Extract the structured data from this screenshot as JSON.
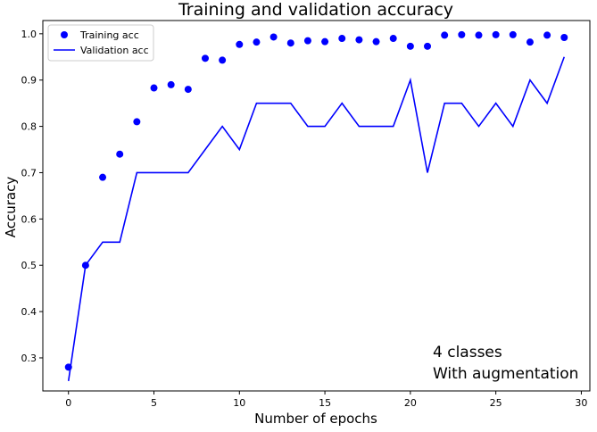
{
  "chart_data": {
    "type": "line",
    "title": "Training and validation accuracy",
    "xlabel": "Number of epochs",
    "ylabel": "Accuracy",
    "xlim": [
      -1.5,
      30.5
    ],
    "ylim": [
      0.2286,
      1.0286
    ],
    "xticks": [
      0,
      5,
      10,
      15,
      20,
      25,
      30
    ],
    "yticks": [
      0.3,
      0.4,
      0.5,
      0.6,
      0.7,
      0.8,
      0.9,
      1.0
    ],
    "grid": false,
    "legend_position": "top-left",
    "x": [
      0,
      1,
      2,
      3,
      4,
      5,
      6,
      7,
      8,
      9,
      10,
      11,
      12,
      13,
      14,
      15,
      16,
      17,
      18,
      19,
      20,
      21,
      22,
      23,
      24,
      25,
      26,
      27,
      28,
      29
    ],
    "series": [
      {
        "name": "Training acc",
        "style": "dots",
        "color": "#0000ff",
        "values": [
          0.28,
          0.5,
          0.69,
          0.74,
          0.81,
          0.883,
          0.89,
          0.88,
          0.947,
          0.943,
          0.977,
          0.982,
          0.993,
          0.98,
          0.985,
          0.983,
          0.99,
          0.987,
          0.983,
          0.99,
          0.973,
          0.973,
          0.997,
          0.998,
          0.997,
          0.998,
          0.998,
          0.982,
          0.997,
          0.992
        ]
      },
      {
        "name": "Validation acc",
        "style": "line",
        "color": "#0000ff",
        "values": [
          0.25,
          0.5,
          0.55,
          0.55,
          0.7,
          0.7,
          0.7,
          0.7,
          0.75,
          0.8,
          0.75,
          0.85,
          0.85,
          0.85,
          0.8,
          0.8,
          0.85,
          0.8,
          0.8,
          0.8,
          0.9,
          0.7,
          0.85,
          0.85,
          0.8,
          0.85,
          0.8,
          0.9,
          0.85,
          0.95
        ]
      }
    ],
    "annotation": [
      "4 classes",
      "With augmentation"
    ]
  }
}
